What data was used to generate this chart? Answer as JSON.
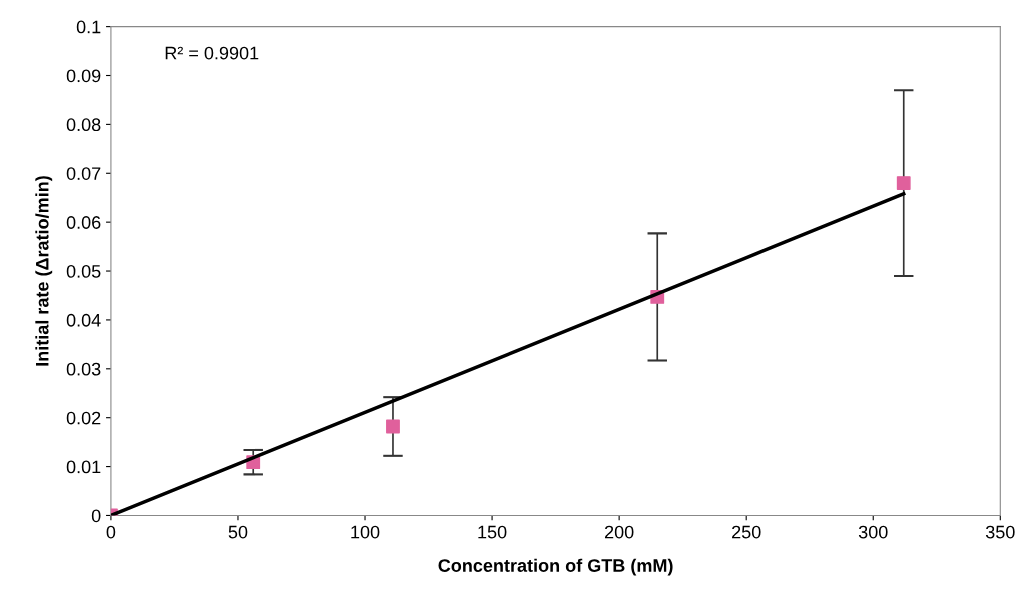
{
  "chart_data": {
    "type": "scatter",
    "xlabel": "Concentration of GTB (mM)",
    "ylabel": "Initial rate (Δratio/min)",
    "annotations": [
      "R² = 0.9901"
    ],
    "xlim": [
      0,
      350
    ],
    "xticks": [
      0,
      50,
      100,
      150,
      200,
      250,
      300,
      350
    ],
    "ylim": [
      0,
      0.1
    ],
    "yticks": [
      0,
      0.01,
      0.02,
      0.03,
      0.04,
      0.05,
      0.06,
      0.07,
      0.08,
      0.09,
      0.1
    ],
    "grid": false,
    "legend": false,
    "series": [
      {
        "marker": "square",
        "color": "#e0609c",
        "x": [
          0,
          56,
          111,
          215,
          312
        ],
        "values": [
          0,
          0.0109,
          0.0182,
          0.0447,
          0.068
        ],
        "errors": [
          null,
          0.0025,
          0.006,
          0.013,
          0.019
        ]
      },
      {
        "type": "line",
        "marker": "none",
        "line_style": "solid",
        "color": "#000000",
        "x": [
          0,
          312
        ],
        "values": [
          0,
          0.0658
        ]
      }
    ]
  }
}
